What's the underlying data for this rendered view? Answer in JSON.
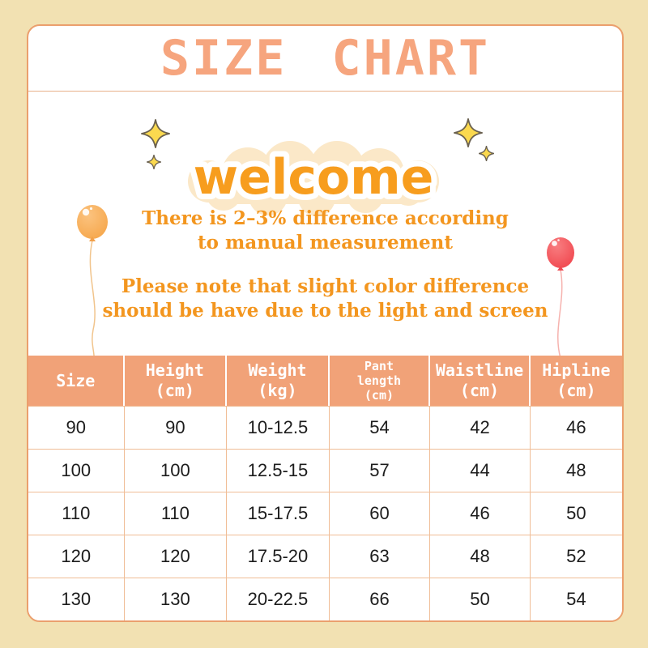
{
  "title": "SIZE CHART",
  "welcome": "welcome",
  "notes": [
    {
      "lines": [
        "There is 2–3% difference according",
        "to manual measurement"
      ]
    },
    {
      "lines": [
        "Please note that slight color difference",
        "should be have due to the light and screen"
      ]
    }
  ],
  "chart_data": {
    "type": "table",
    "title": "SIZE CHART",
    "columns": [
      "Size",
      "Height (cm)",
      "Weight (kg)",
      "Pant length (cm)",
      "Waistline (cm)",
      "Hipline (cm)"
    ],
    "headers": [
      {
        "lines": [
          "Size"
        ],
        "small": false
      },
      {
        "lines": [
          "Height",
          "(cm)"
        ],
        "small": false
      },
      {
        "lines": [
          "Weight",
          "(kg)"
        ],
        "small": false
      },
      {
        "lines": [
          "Pant",
          "length",
          "(cm)"
        ],
        "small": true
      },
      {
        "lines": [
          "Waistline",
          "(cm)"
        ],
        "small": false
      },
      {
        "lines": [
          "Hipline",
          "(cm)"
        ],
        "small": false
      }
    ],
    "rows": [
      [
        "90",
        "90",
        "10-12.5",
        "54",
        "42",
        "46"
      ],
      [
        "100",
        "100",
        "12.5-15",
        "57",
        "44",
        "48"
      ],
      [
        "110",
        "110",
        "15-17.5",
        "60",
        "46",
        "50"
      ],
      [
        "120",
        "120",
        "17.5-20",
        "63",
        "48",
        "52"
      ],
      [
        "130",
        "130",
        "20-22.5",
        "66",
        "50",
        "54"
      ]
    ]
  },
  "decor": {
    "sparkle_icon": "four-point-star",
    "balloon_left": "orange-balloon",
    "balloon_right": "red-balloon",
    "cloud": "welcome-cloud"
  },
  "colors": {
    "background": "#f2e1b2",
    "card_border": "#eb9f6d",
    "title": "#f6a57e",
    "welcome_text": "#f79d1e",
    "cloud": "#fbe8c8",
    "sparkle": "#fbd94f",
    "note_text": "#f3961f",
    "header_bg": "#f1a278",
    "header_text": "#ffffff",
    "grid_line": "#f0bd96",
    "balloon_left": "#f6a84e",
    "balloon_right": "#f14b52"
  }
}
